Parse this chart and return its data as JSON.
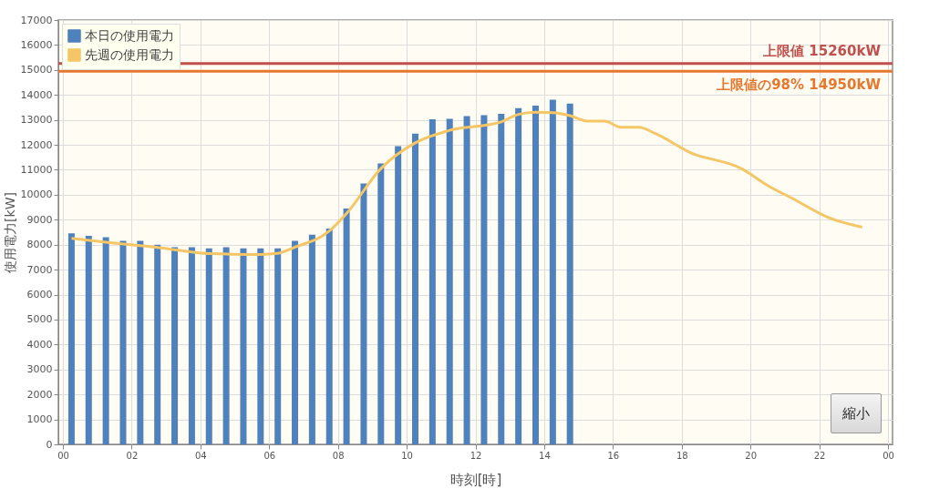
{
  "chart_data": {
    "type": "bar",
    "xlabel": "時刻[時]",
    "ylabel": "使用電力[kW]",
    "xlim": [
      0,
      24
    ],
    "xticks": [
      {
        "value": 0,
        "label": "00"
      },
      {
        "value": 2,
        "label": "02"
      },
      {
        "value": 4,
        "label": "04"
      },
      {
        "value": 6,
        "label": "06"
      },
      {
        "value": 8,
        "label": "08"
      },
      {
        "value": 10,
        "label": "10"
      },
      {
        "value": 12,
        "label": "12"
      },
      {
        "value": 14,
        "label": "14"
      },
      {
        "value": 16,
        "label": "16"
      },
      {
        "value": 18,
        "label": "18"
      },
      {
        "value": 20,
        "label": "20"
      },
      {
        "value": 22,
        "label": "22"
      },
      {
        "value": 24,
        "label": "00"
      }
    ],
    "ylim": [
      0,
      17000
    ],
    "yticks": [
      0,
      1000,
      2000,
      3000,
      4000,
      5000,
      6000,
      7000,
      8000,
      9000,
      10000,
      11000,
      12000,
      13000,
      14000,
      15000,
      16000,
      17000
    ],
    "series": [
      {
        "name": "本日の使用電力",
        "color": "#4f81bd",
        "x": [
          0.25,
          0.75,
          1.25,
          1.75,
          2.25,
          2.75,
          3.25,
          3.75,
          4.25,
          4.75,
          5.25,
          5.75,
          6.25,
          6.75,
          7.25,
          7.75,
          8.25,
          8.75,
          9.25,
          9.75,
          10.25,
          10.75,
          11.25,
          11.75,
          12.25,
          12.75,
          13.25,
          13.75,
          14.25,
          14.75
        ],
        "values": [
          8450,
          8350,
          8300,
          8150,
          8150,
          8000,
          7900,
          7900,
          7850,
          7900,
          7850,
          7850,
          7850,
          8150,
          8400,
          8650,
          9450,
          10450,
          11250,
          11950,
          12450,
          13020,
          13040,
          13150,
          13190,
          13240,
          13470,
          13570,
          13810,
          13650
        ]
      },
      {
        "name": "先週の使用電力",
        "type": "line",
        "color": "#f5c666",
        "x": [
          0.25,
          1.25,
          2.75,
          4.25,
          5.75,
          6.25,
          6.75,
          7.75,
          8.25,
          9.25,
          10.25,
          11.25,
          12.75,
          13.25,
          13.75,
          14.25,
          14.75,
          15.25,
          15.75,
          16.25,
          16.75,
          17.25,
          18.25,
          19.75,
          20.5,
          21.25,
          22.25,
          23.25
        ],
        "values": [
          8250,
          8100,
          7890,
          7640,
          7610,
          7650,
          7900,
          8550,
          9250,
          11050,
          12080,
          12580,
          12920,
          13220,
          13310,
          13290,
          13170,
          12950,
          12950,
          12700,
          12700,
          12440,
          11690,
          11040,
          10370,
          9830,
          9100,
          8700
        ]
      }
    ],
    "ref_lines": [
      {
        "axis": "y",
        "value": 15260,
        "label": "上限値 15260kW",
        "color": "#c0504d"
      },
      {
        "axis": "y",
        "value": 14950,
        "label": "上限値の98% 14950kW",
        "color": "#e8772e"
      }
    ],
    "annotations": [
      "縮小"
    ],
    "grid": true,
    "legend": "top left",
    "marker": "none"
  }
}
